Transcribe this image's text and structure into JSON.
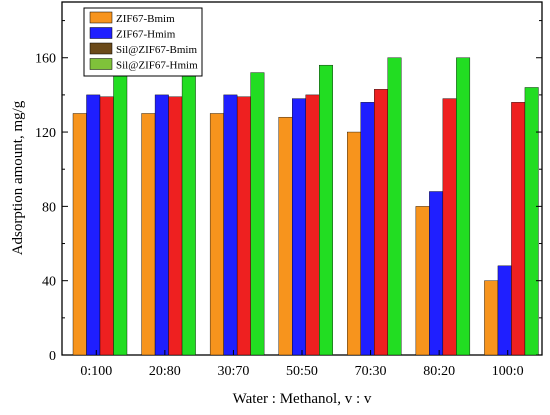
{
  "chart_data": {
    "type": "bar",
    "title": "",
    "xlabel": "Water : Methanol, v : v",
    "ylabel": "Adsorption amount, mg/g",
    "categories": [
      "0:100",
      "20:80",
      "30:70",
      "50:50",
      "70:30",
      "80:20",
      "100:0"
    ],
    "ylim": [
      0,
      190
    ],
    "yticks": [
      0,
      40,
      80,
      120,
      160
    ],
    "grid": false,
    "legend_position": "top-left",
    "series": [
      {
        "name": "ZIF67-Bmim",
        "color": "#f7941d",
        "values": [
          130,
          130,
          130,
          128,
          120,
          80,
          40
        ]
      },
      {
        "name": "ZIF67-Hmim",
        "color": "#1f1fff",
        "values": [
          140,
          140,
          140,
          138,
          136,
          88,
          48
        ]
      },
      {
        "name": "Sil@ZIF67-Bmim",
        "color": "#ee2020",
        "values": [
          139,
          139,
          139,
          140,
          143,
          138,
          136
        ]
      },
      {
        "name": "Sil@ZIF67-Hmim",
        "color": "#22dd22",
        "values": [
          152,
          152,
          152,
          156,
          160,
          160,
          144
        ]
      }
    ],
    "legend_swatch_colors": [
      "#f7941d",
      "#1f1fff",
      "#6b4a1a",
      "#7fc23a"
    ]
  }
}
